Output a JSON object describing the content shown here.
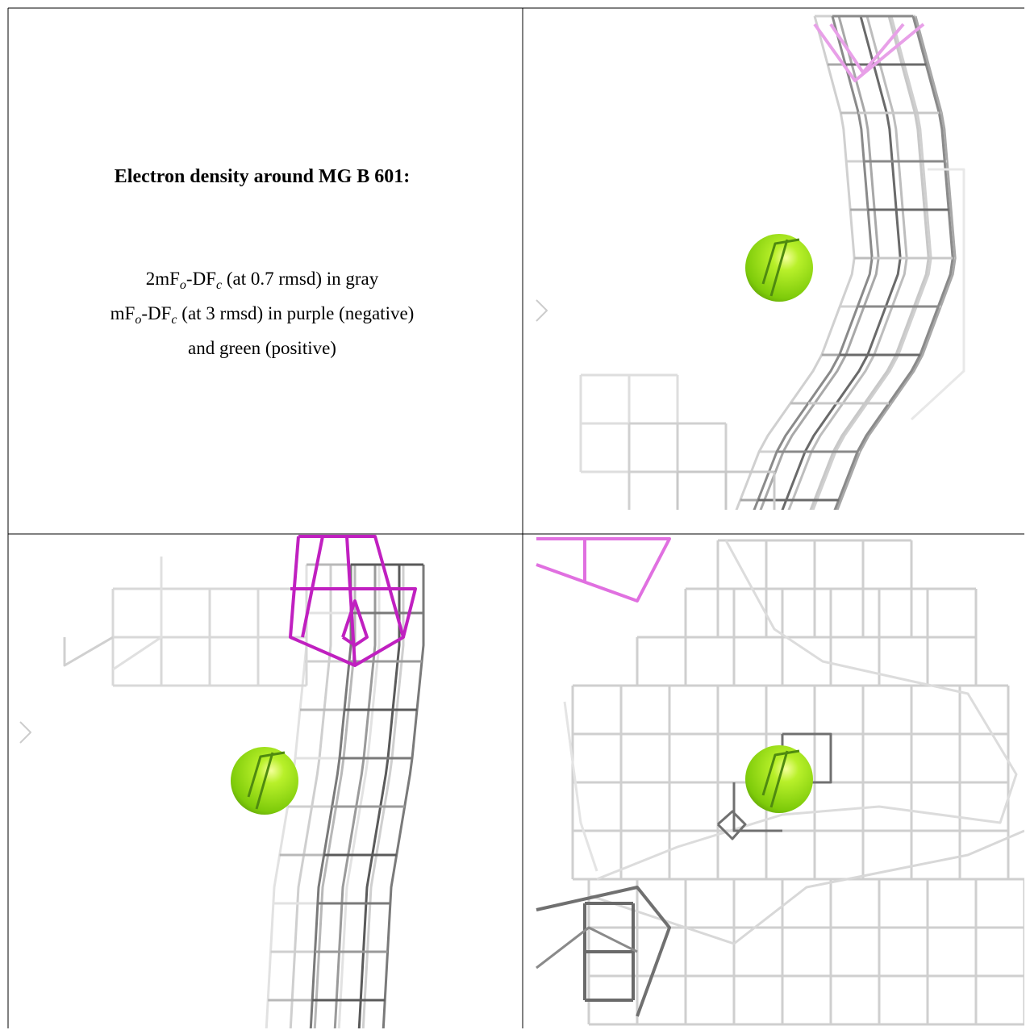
{
  "title": "Electron density around MG B 601:",
  "legend": [
    [
      "2mF",
      "o",
      "-DF",
      "c",
      " (at 0.7 rmsd) in gray"
    ],
    [
      "mF",
      "o",
      "-DF",
      "c",
      " (at 3 rmsd) in purple (negative)"
    ],
    [
      "and green (positive)"
    ]
  ]
}
